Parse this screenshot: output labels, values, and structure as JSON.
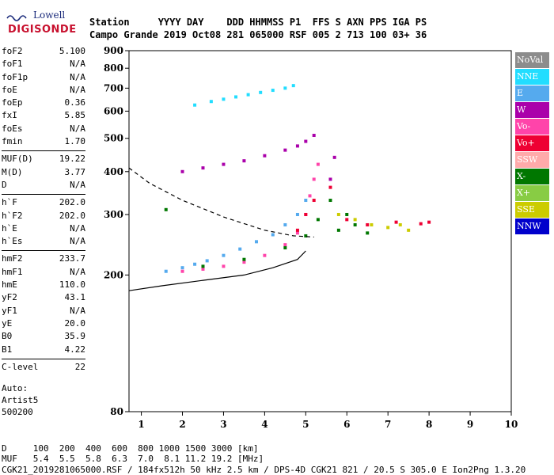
{
  "logo": {
    "line1": "Lowell",
    "line2": "DIGISONDE"
  },
  "header": {
    "row1": "Station     YYYY DAY    DDD HHMMSS P1  FFS S AXN PPS IGA PS",
    "row2": "Campo Grande 2019 Oct08 281 065000 RSF 005 2 713 100 03+ 36"
  },
  "params": [
    {
      "name": "foF2",
      "value": "5.100"
    },
    {
      "name": "foF1",
      "value": "N/A"
    },
    {
      "name": "foF1p",
      "value": "N/A"
    },
    {
      "name": "foE",
      "value": "N/A"
    },
    {
      "name": "foEp",
      "value": "0.36"
    },
    {
      "name": "fxI",
      "value": "5.85"
    },
    {
      "name": "foEs",
      "value": "N/A"
    },
    {
      "name": "fmin",
      "value": "1.70"
    },
    {
      "sep": true
    },
    {
      "name": "MUF(D)",
      "value": "19.22"
    },
    {
      "name": "M(D)",
      "value": "3.77"
    },
    {
      "name": "D",
      "value": "N/A"
    },
    {
      "sep": true
    },
    {
      "name": "h`F",
      "value": "202.0"
    },
    {
      "name": "h`F2",
      "value": "202.0"
    },
    {
      "name": "h`E",
      "value": "N/A"
    },
    {
      "name": "h`Es",
      "value": "N/A"
    },
    {
      "sep": true
    },
    {
      "name": "hmF2",
      "value": "233.7"
    },
    {
      "name": "hmF1",
      "value": "N/A"
    },
    {
      "name": "hmE",
      "value": "110.0"
    },
    {
      "name": "yF2",
      "value": "43.1"
    },
    {
      "name": "yF1",
      "value": "N/A"
    },
    {
      "name": "yE",
      "value": "20.0"
    },
    {
      "name": "B0",
      "value": "35.9"
    },
    {
      "name": "B1",
      "value": "4.22"
    },
    {
      "sep": true
    },
    {
      "name": "C-level",
      "value": "22"
    }
  ],
  "auto": {
    "line1": "Auto:",
    "line2": "Artist5",
    "line3": "500200"
  },
  "legend": [
    {
      "label": "NoVal",
      "color": "#8c8c8c"
    },
    {
      "label": "NNE",
      "color": "#22ddff"
    },
    {
      "label": "E",
      "color": "#55aaee"
    },
    {
      "label": "W",
      "color": "#aa00aa"
    },
    {
      "label": "Vo-",
      "color": "#ff44aa"
    },
    {
      "label": "Vo+",
      "color": "#ee0033"
    },
    {
      "label": "SSW",
      "color": "#ffaaaa"
    },
    {
      "label": "X-",
      "color": "#007700"
    },
    {
      "label": "X+",
      "color": "#88cc44"
    },
    {
      "label": "SSE",
      "color": "#cccc00"
    },
    {
      "label": "NNW",
      "color": "#0000cc"
    }
  ],
  "chart_data": {
    "type": "scatter",
    "xlim": [
      0.7,
      10
    ],
    "ylim": [
      80,
      900
    ],
    "y_scale": "log",
    "x_ticks": [
      1,
      2,
      3,
      4,
      5,
      6,
      7,
      8,
      9,
      10
    ],
    "y_ticks": [
      80,
      200,
      300,
      400,
      500,
      600,
      700,
      800,
      900
    ],
    "series": [
      {
        "name": "E",
        "color": "#55aaee",
        "x": [
          1.6,
          2.0,
          2.3,
          2.6,
          3.0,
          3.4,
          3.8,
          4.2,
          4.5,
          4.8,
          5.0
        ],
        "y": [
          205,
          210,
          215,
          220,
          228,
          238,
          250,
          262,
          280,
          300,
          330
        ]
      },
      {
        "name": "Vo-",
        "color": "#ff44aa",
        "x": [
          2.0,
          2.5,
          3.0,
          3.5,
          4.0,
          4.5,
          4.8,
          5.0,
          5.1,
          5.2,
          5.3
        ],
        "y": [
          205,
          208,
          212,
          218,
          228,
          245,
          265,
          300,
          340,
          380,
          420
        ]
      },
      {
        "name": "X-",
        "color": "#007700",
        "x": [
          1.6,
          2.5,
          3.5,
          4.5,
          5.0,
          5.3,
          5.6,
          5.8,
          6.0,
          6.2,
          6.5
        ],
        "y": [
          310,
          212,
          222,
          240,
          260,
          290,
          330,
          270,
          300,
          280,
          265
        ]
      },
      {
        "name": "W",
        "color": "#aa00aa",
        "x": [
          2.0,
          2.5,
          3.0,
          3.5,
          4.0,
          4.5,
          4.8,
          5.0,
          5.2,
          5.6,
          5.7
        ],
        "y": [
          400,
          410,
          420,
          430,
          445,
          462,
          475,
          490,
          510,
          380,
          440
        ]
      },
      {
        "name": "NNE",
        "color": "#22ddff",
        "x": [
          2.3,
          2.7,
          3.0,
          3.3,
          3.6,
          3.9,
          4.2,
          4.5,
          4.7
        ],
        "y": [
          625,
          640,
          650,
          660,
          670,
          680,
          690,
          700,
          712
        ]
      },
      {
        "name": "SSE",
        "color": "#cccc00",
        "x": [
          5.8,
          6.2,
          6.6,
          7.0,
          7.3,
          7.5
        ],
        "y": [
          300,
          290,
          280,
          275,
          280,
          270
        ]
      },
      {
        "name": "Vo+",
        "color": "#ee0033",
        "x": [
          4.8,
          5.0,
          5.2,
          5.6,
          6.0,
          6.5,
          7.2,
          7.8,
          8.0
        ],
        "y": [
          270,
          300,
          330,
          360,
          290,
          280,
          285,
          282,
          285
        ]
      }
    ],
    "curves": [
      {
        "style": "solid",
        "x": [
          0.7,
          1.5,
          2.5,
          3.5,
          4.2,
          4.8,
          5.0
        ],
        "y": [
          180,
          186,
          193,
          200,
          210,
          222,
          235
        ]
      },
      {
        "style": "dashed",
        "x": [
          0.7,
          1.2,
          2.0,
          3.0,
          4.0,
          4.7,
          5.2
        ],
        "y": [
          410,
          370,
          330,
          295,
          270,
          260,
          258
        ]
      }
    ]
  },
  "footer": {
    "d_row": "D     100  200  400  600  800 1000 1500 3000 [km]",
    "muf_row": "MUF   5.4  5.5  5.8  6.3  7.0  8.1 11.2 19.2 [MHz]",
    "info_row": "CGK21_2019281065000.RSF / 184fx512h 50 kHz 2.5 km / DPS-4D CGK21 821 / 20.5 S 305.0 E Ion2Png 1.3.20"
  }
}
